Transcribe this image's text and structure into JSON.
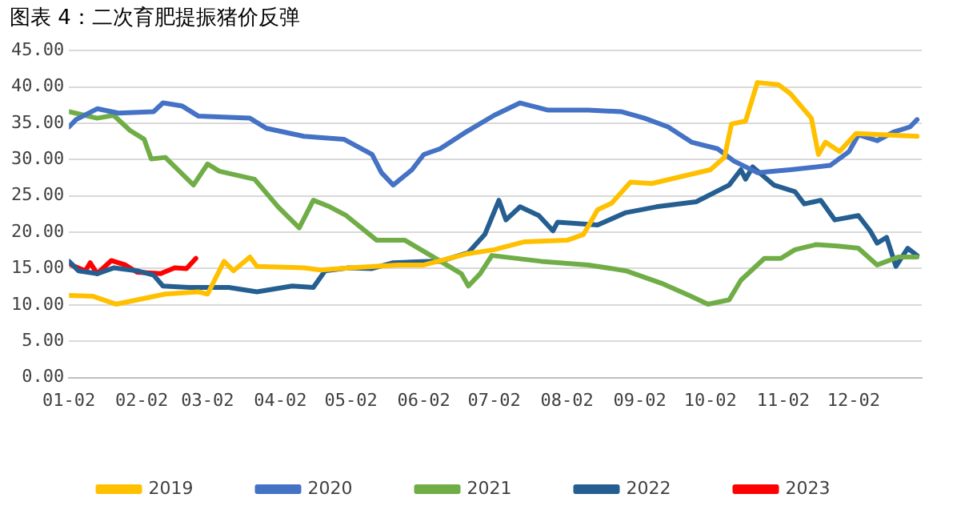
{
  "chart_data": {
    "type": "line",
    "title": "图表 4：二次育肥提振猪价反弹",
    "legend": "bottom",
    "grid": "y",
    "marker": "none",
    "line_style": "solid",
    "xlim": [
      "--01-02",
      "--12-31"
    ],
    "xticks": [
      {
        "value": "--01-02",
        "label": "01-02"
      },
      {
        "value": "--02-02",
        "label": "02-02"
      },
      {
        "value": "--03-02",
        "label": "03-02"
      },
      {
        "value": "--04-02",
        "label": "04-02"
      },
      {
        "value": "--05-02",
        "label": "05-02"
      },
      {
        "value": "--06-02",
        "label": "06-02"
      },
      {
        "value": "--07-02",
        "label": "07-02"
      },
      {
        "value": "--08-02",
        "label": "08-02"
      },
      {
        "value": "--09-02",
        "label": "09-02"
      },
      {
        "value": "--10-02",
        "label": "10-02"
      },
      {
        "value": "--11-02",
        "label": "11-02"
      },
      {
        "value": "--12-02",
        "label": "12-02"
      }
    ],
    "ylim": [
      0,
      45
    ],
    "yticks": [
      {
        "value": 0,
        "label": "0.00"
      },
      {
        "value": 5,
        "label": "5.00"
      },
      {
        "value": 10,
        "label": "10.00"
      },
      {
        "value": 15,
        "label": "15.00"
      },
      {
        "value": 20,
        "label": "20.00"
      },
      {
        "value": 25,
        "label": "25.00"
      },
      {
        "value": 30,
        "label": "30.00"
      },
      {
        "value": 35,
        "label": "35.00"
      },
      {
        "value": 40,
        "label": "40.00"
      },
      {
        "value": 45,
        "label": "45.00"
      }
    ],
    "series": [
      {
        "name": "2019",
        "color": "#ffc000",
        "x": [
          "--01-02",
          "--01-12",
          "--01-22",
          "--02-12",
          "--02-26",
          "--03-02",
          "--03-09",
          "--03-13",
          "--03-20",
          "--03-23",
          "--04-12",
          "--04-19",
          "--05-02",
          "--05-22",
          "--06-02",
          "--06-20",
          "--07-02",
          "--07-15",
          "--08-02",
          "--08-09",
          "--08-15",
          "--08-21",
          "--08-29",
          "--09-07",
          "--10-02",
          "--10-08",
          "--10-11",
          "--10-17",
          "--10-22",
          "--10-31",
          "--11-05",
          "--11-14",
          "--11-17",
          "--11-20",
          "--11-26",
          "--12-03",
          "--12-29"
        ],
        "values": [
          11.3,
          11.2,
          10.1,
          11.5,
          11.8,
          11.5,
          16,
          14.7,
          16.6,
          15.3,
          15.1,
          14.8,
          15.1,
          15.5,
          15.5,
          17,
          17.6,
          18.7,
          18.9,
          19.7,
          23.1,
          24,
          26.9,
          26.7,
          28.6,
          30.3,
          34.9,
          35.3,
          40.6,
          40.3,
          39.1,
          35.7,
          30.7,
          32.4,
          31.1,
          33.6,
          33.2
        ]
      },
      {
        "name": "2020",
        "color": "#4472c4",
        "x": [
          "--01-02",
          "--01-05",
          "--01-14",
          "--01-23",
          "--02-07",
          "--02-11",
          "--02-19",
          "--02-26",
          "--03-20",
          "--03-27",
          "--04-12",
          "--04-29",
          "--05-11",
          "--05-15",
          "--05-20",
          "--05-28",
          "--06-02",
          "--06-09",
          "--06-19",
          "--07-02",
          "--07-13",
          "--07-25",
          "--08-11",
          "--08-25",
          "--09-04",
          "--09-14",
          "--09-24",
          "--10-05",
          "--10-12",
          "--10-22",
          "--11-05",
          "--11-22",
          "--11-30",
          "--12-04",
          "--12-12",
          "--12-19",
          "--12-26",
          "--12-29"
        ],
        "values": [
          34.5,
          35.5,
          37,
          36.4,
          36.6,
          37.8,
          37.4,
          36,
          35.7,
          34.3,
          33.2,
          32.8,
          30.7,
          28.2,
          26.5,
          28.6,
          30.7,
          31.5,
          33.6,
          36.1,
          37.8,
          36.8,
          36.8,
          36.6,
          35.7,
          34.5,
          32.4,
          31.5,
          29.8,
          28.2,
          28.6,
          29.2,
          31.1,
          33.4,
          32.6,
          33.8,
          34.5,
          35.5
        ]
      },
      {
        "name": "2021",
        "color": "#70ad47",
        "x": [
          "--01-02",
          "--01-14",
          "--01-21",
          "--01-28",
          "--02-03",
          "--02-06",
          "--02-12",
          "--02-24",
          "--03-02",
          "--03-07",
          "--03-22",
          "--04-01",
          "--04-10",
          "--04-16",
          "--04-23",
          "--04-30",
          "--05-13",
          "--05-25",
          "--06-04",
          "--06-18",
          "--06-21",
          "--06-26",
          "--07-01",
          "--07-22",
          "--08-11",
          "--08-27",
          "--09-11",
          "--09-23",
          "--10-01",
          "--10-10",
          "--10-15",
          "--10-25",
          "--11-01",
          "--11-07",
          "--11-16",
          "--11-25",
          "--12-04",
          "--12-12",
          "--12-21",
          "--12-29"
        ],
        "values": [
          36.6,
          35.7,
          36.1,
          34,
          32.8,
          30.1,
          30.3,
          26.5,
          29.4,
          28.4,
          27.3,
          23.5,
          20.6,
          24.4,
          23.5,
          22.3,
          18.9,
          18.9,
          17,
          14.3,
          12.6,
          14.3,
          16.8,
          16,
          15.5,
          14.7,
          13,
          11.3,
          10.1,
          10.7,
          13.4,
          16.4,
          16.4,
          17.6,
          18.3,
          18.1,
          17.8,
          15.5,
          16.6,
          16.6
        ]
      },
      {
        "name": "2022",
        "color": "#255e91",
        "x": [
          "--01-02",
          "--01-06",
          "--01-14",
          "--01-21",
          "--01-31",
          "--02-07",
          "--02-11",
          "--02-22",
          "--03-11",
          "--03-23",
          "--04-07",
          "--04-16",
          "--04-21",
          "--05-01",
          "--05-11",
          "--05-20",
          "--06-04",
          "--06-09",
          "--06-21",
          "--06-28",
          "--07-04",
          "--07-07",
          "--07-13",
          "--07-21",
          "--07-27",
          "--07-29",
          "--08-15",
          "--08-27",
          "--09-09",
          "--09-26",
          "--10-10",
          "--10-15",
          "--10-17",
          "--10-20",
          "--10-29",
          "--11-07",
          "--11-11",
          "--11-18",
          "--11-24",
          "--12-04",
          "--12-09",
          "--12-12",
          "--12-16",
          "--12-20",
          "--12-25",
          "--12-29"
        ],
        "values": [
          16,
          14.7,
          14.3,
          15.1,
          14.7,
          14.1,
          12.6,
          12.4,
          12.4,
          11.8,
          12.6,
          12.4,
          14.7,
          15.1,
          15,
          15.8,
          16,
          16,
          17.2,
          19.7,
          24.4,
          21.7,
          23.5,
          22.3,
          20.2,
          21.4,
          21,
          22.7,
          23.5,
          24.2,
          26.5,
          28.6,
          27.3,
          29,
          26.5,
          25.6,
          23.9,
          24.4,
          21.7,
          22.3,
          20.2,
          18.5,
          19.3,
          15.3,
          17.8,
          16.8
        ]
      },
      {
        "name": "2023",
        "color": "#ff0000",
        "x": [
          "--01-03",
          "--01-09",
          "--01-11",
          "--01-14",
          "--01-20",
          "--01-26",
          "--01-31",
          "--02-10",
          "--02-16",
          "--02-21",
          "--02-25"
        ],
        "values": [
          15.5,
          14.7,
          15.8,
          14.3,
          16.1,
          15.5,
          14.5,
          14.3,
          15.1,
          15,
          16.4
        ]
      }
    ]
  }
}
